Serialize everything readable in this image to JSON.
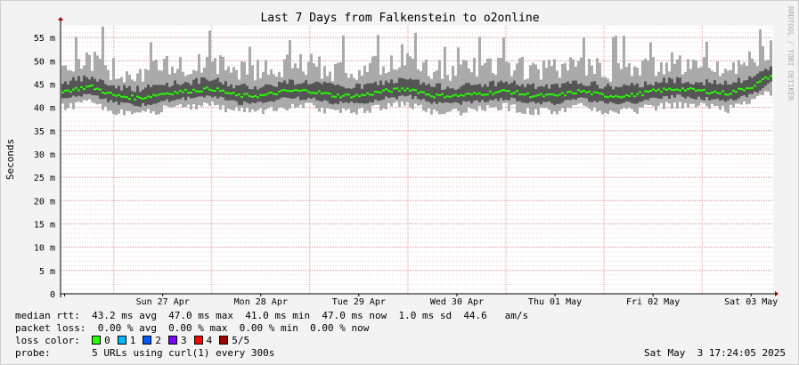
{
  "chart_data": {
    "type": "area",
    "title": "Last 7 Days from Falkenstein to o2online",
    "ylabel": "Seconds",
    "watermark": "RRDTOOL / TOBI OETIKER",
    "ylim": [
      0,
      0.0575
    ],
    "yticks": [
      0,
      0.005,
      0.01,
      0.015,
      0.02,
      0.025,
      0.03,
      0.035,
      0.04,
      0.045,
      0.05,
      0.055
    ],
    "ytick_labels": [
      "0",
      "5 m",
      "10 m",
      "15 m",
      "20 m",
      "25 m",
      "30 m",
      "35 m",
      "40 m",
      "45 m",
      "50 m",
      "55 m"
    ],
    "xlim": [
      "2025-04-26T11:00",
      "2025-05-03T17:24"
    ],
    "xtick_labels": [
      "Sun 27 Apr",
      "Mon 28 Apr",
      "Tue 29 Apr",
      "Wed 30 Apr",
      "Thu 01 May",
      "Fri 02 May",
      "Sat 03 May"
    ],
    "xticks": [
      "2025-04-27T12:00",
      "2025-04-28T12:00",
      "2025-04-29T12:00",
      "2025-04-30T12:00",
      "2025-05-01T12:00",
      "2025-05-02T12:00",
      "2025-05-03T12:00"
    ],
    "median_rtt": {
      "x": [
        "2025-04-26T12:00",
        "2025-04-26T18:00",
        "2025-04-27T00:00",
        "2025-04-27T06:00",
        "2025-04-27T12:00",
        "2025-04-27T18:00",
        "2025-04-28T00:00",
        "2025-04-28T06:00",
        "2025-04-28T12:00",
        "2025-04-28T18:00",
        "2025-04-29T00:00",
        "2025-04-29T06:00",
        "2025-04-29T12:00",
        "2025-04-29T18:00",
        "2025-04-30T00:00",
        "2025-04-30T06:00",
        "2025-04-30T12:00",
        "2025-04-30T18:00",
        "2025-05-01T00:00",
        "2025-05-01T06:00",
        "2025-05-01T12:00",
        "2025-05-01T18:00",
        "2025-05-02T00:00",
        "2025-05-02T06:00",
        "2025-05-02T12:00",
        "2025-05-02T18:00",
        "2025-05-03T00:00",
        "2025-05-03T06:00",
        "2025-05-03T12:00",
        "2025-05-03T17:00"
      ],
      "y": [
        0.0435,
        0.0445,
        0.0425,
        0.042,
        0.043,
        0.0435,
        0.044,
        0.0425,
        0.0425,
        0.0435,
        0.0435,
        0.0425,
        0.0425,
        0.0435,
        0.044,
        0.0425,
        0.0425,
        0.043,
        0.0435,
        0.0425,
        0.0425,
        0.0435,
        0.0425,
        0.0425,
        0.0435,
        0.044,
        0.0435,
        0.043,
        0.0445,
        0.047
      ]
    },
    "legend": {
      "median_rtt": "median rtt:  43.2 ms avg  47.0 ms max  41.0 ms min  47.0 ms now  1.0 ms sd  44.6   am/s",
      "packet_loss": "packet loss:  0.00 % avg  0.00 % max  0.00 % min  0.00 % now",
      "loss_color_label": "loss color:",
      "loss_colors": [
        {
          "label": "0",
          "color": "#26ff00"
        },
        {
          "label": "1",
          "color": "#00b8ff"
        },
        {
          "label": "2",
          "color": "#0059ff"
        },
        {
          "label": "3",
          "color": "#7e00ff"
        },
        {
          "label": "4",
          "color": "#ff0000"
        },
        {
          "label": "5/5",
          "color": "#a10000"
        }
      ],
      "probe": "probe:       5 URLs using curl(1) every 300s",
      "timestamp": "Sat May  3 17:24:05 2025"
    },
    "colors": {
      "median_line": "#26ff00",
      "smoke_light": "#aaaaaa",
      "smoke_dark": "#555555",
      "grid": "#e0a0a0",
      "axis": "#000000"
    }
  }
}
